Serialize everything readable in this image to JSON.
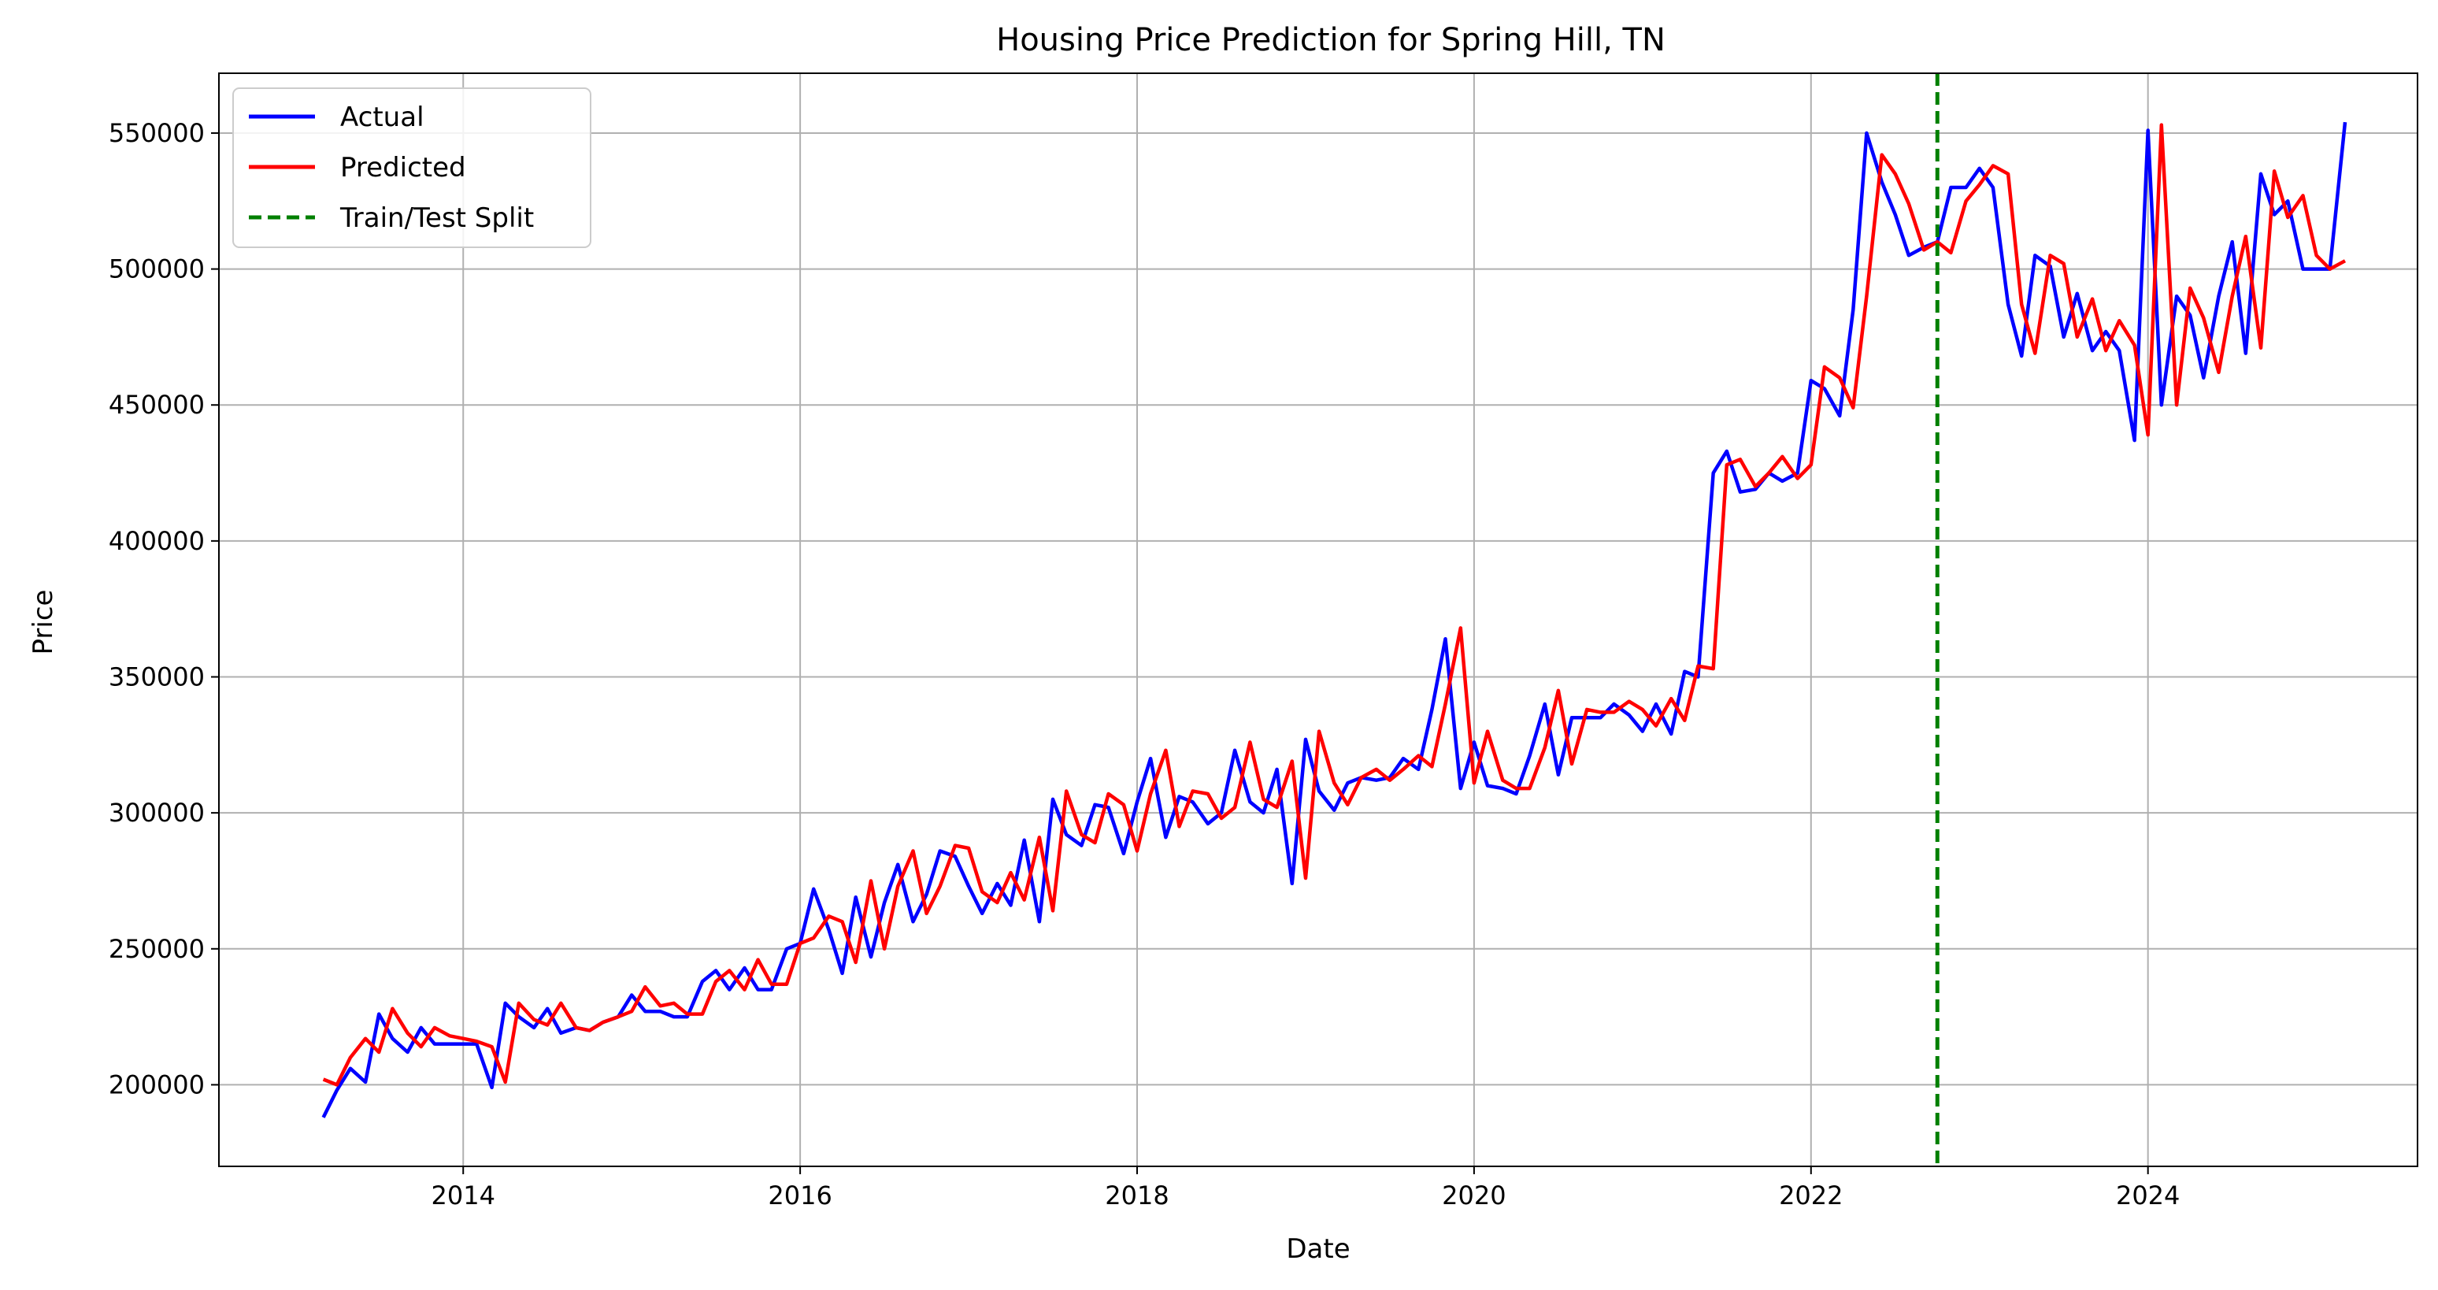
{
  "chart_data": {
    "type": "line",
    "title": "Housing Price Prediction for Spring Hill, TN",
    "xlabel": "Date",
    "ylabel": "Price",
    "x_ticks": [
      "2014",
      "2016",
      "2018",
      "2020",
      "2022",
      "2024"
    ],
    "y_ticks": [
      "200000",
      "250000",
      "300000",
      "350000",
      "400000",
      "450000",
      "500000",
      "550000"
    ],
    "xlim": [
      2012.55,
      2025.6
    ],
    "ylim": [
      170000,
      572000
    ],
    "grid": true,
    "legend_position": "top-left",
    "split": {
      "name": "Train/Test Split",
      "x": 2022.75,
      "color": "#008000"
    },
    "series": [
      {
        "name": "Actual",
        "color": "#0000ff",
        "values": [
          [
            2013.17,
            188000
          ],
          [
            2013.25,
            198000
          ],
          [
            2013.33,
            206000
          ],
          [
            2013.42,
            201000
          ],
          [
            2013.5,
            226000
          ],
          [
            2013.58,
            217000
          ],
          [
            2013.67,
            212000
          ],
          [
            2013.75,
            221000
          ],
          [
            2013.83,
            215000
          ],
          [
            2013.92,
            215000
          ],
          [
            2014.0,
            215000
          ],
          [
            2014.08,
            215000
          ],
          [
            2014.17,
            199000
          ],
          [
            2014.25,
            230000
          ],
          [
            2014.33,
            225000
          ],
          [
            2014.42,
            221000
          ],
          [
            2014.5,
            228000
          ],
          [
            2014.58,
            219000
          ],
          [
            2014.67,
            221000
          ],
          [
            2014.75,
            220000
          ],
          [
            2014.83,
            223000
          ],
          [
            2014.92,
            225000
          ],
          [
            2015.0,
            233000
          ],
          [
            2015.08,
            227000
          ],
          [
            2015.17,
            227000
          ],
          [
            2015.25,
            225000
          ],
          [
            2015.33,
            225000
          ],
          [
            2015.42,
            238000
          ],
          [
            2015.5,
            242000
          ],
          [
            2015.58,
            235000
          ],
          [
            2015.67,
            243000
          ],
          [
            2015.75,
            235000
          ],
          [
            2015.83,
            235000
          ],
          [
            2015.92,
            250000
          ],
          [
            2016.0,
            252000
          ],
          [
            2016.08,
            272000
          ],
          [
            2016.17,
            257000
          ],
          [
            2016.25,
            241000
          ],
          [
            2016.33,
            269000
          ],
          [
            2016.42,
            247000
          ],
          [
            2016.5,
            267000
          ],
          [
            2016.58,
            281000
          ],
          [
            2016.67,
            260000
          ],
          [
            2016.75,
            270000
          ],
          [
            2016.83,
            286000
          ],
          [
            2016.92,
            284000
          ],
          [
            2017.0,
            273000
          ],
          [
            2017.08,
            263000
          ],
          [
            2017.17,
            274000
          ],
          [
            2017.25,
            266000
          ],
          [
            2017.33,
            290000
          ],
          [
            2017.42,
            260000
          ],
          [
            2017.5,
            305000
          ],
          [
            2017.58,
            292000
          ],
          [
            2017.67,
            288000
          ],
          [
            2017.75,
            303000
          ],
          [
            2017.83,
            302000
          ],
          [
            2017.92,
            285000
          ],
          [
            2018.0,
            304000
          ],
          [
            2018.08,
            320000
          ],
          [
            2018.17,
            291000
          ],
          [
            2018.25,
            306000
          ],
          [
            2018.33,
            304000
          ],
          [
            2018.42,
            296000
          ],
          [
            2018.5,
            300000
          ],
          [
            2018.58,
            323000
          ],
          [
            2018.67,
            304000
          ],
          [
            2018.75,
            300000
          ],
          [
            2018.83,
            316000
          ],
          [
            2018.92,
            274000
          ],
          [
            2019.0,
            327000
          ],
          [
            2019.08,
            308000
          ],
          [
            2019.17,
            301000
          ],
          [
            2019.25,
            311000
          ],
          [
            2019.33,
            313000
          ],
          [
            2019.42,
            312000
          ],
          [
            2019.5,
            313000
          ],
          [
            2019.58,
            320000
          ],
          [
            2019.67,
            316000
          ],
          [
            2019.75,
            338000
          ],
          [
            2019.83,
            364000
          ],
          [
            2019.92,
            309000
          ],
          [
            2020.0,
            326000
          ],
          [
            2020.08,
            310000
          ],
          [
            2020.17,
            309000
          ],
          [
            2020.25,
            307000
          ],
          [
            2020.33,
            321000
          ],
          [
            2020.42,
            340000
          ],
          [
            2020.5,
            314000
          ],
          [
            2020.58,
            335000
          ],
          [
            2020.67,
            335000
          ],
          [
            2020.75,
            335000
          ],
          [
            2020.83,
            340000
          ],
          [
            2020.92,
            336000
          ],
          [
            2021.0,
            330000
          ],
          [
            2021.08,
            340000
          ],
          [
            2021.17,
            329000
          ],
          [
            2021.25,
            352000
          ],
          [
            2021.33,
            350000
          ],
          [
            2021.42,
            425000
          ],
          [
            2021.5,
            433000
          ],
          [
            2021.58,
            418000
          ],
          [
            2021.67,
            419000
          ],
          [
            2021.75,
            425000
          ],
          [
            2021.83,
            422000
          ],
          [
            2021.92,
            425000
          ],
          [
            2022.0,
            459000
          ],
          [
            2022.08,
            456000
          ],
          [
            2022.17,
            446000
          ],
          [
            2022.25,
            485000
          ],
          [
            2022.33,
            550000
          ],
          [
            2022.42,
            532000
          ],
          [
            2022.5,
            520000
          ],
          [
            2022.58,
            505000
          ],
          [
            2022.67,
            508000
          ],
          [
            2022.75,
            510000
          ],
          [
            2022.83,
            530000
          ],
          [
            2022.92,
            530000
          ],
          [
            2023.0,
            537000
          ],
          [
            2023.08,
            530000
          ],
          [
            2023.17,
            487000
          ],
          [
            2023.25,
            468000
          ],
          [
            2023.33,
            505000
          ],
          [
            2023.42,
            501000
          ],
          [
            2023.5,
            475000
          ],
          [
            2023.58,
            491000
          ],
          [
            2023.67,
            470000
          ],
          [
            2023.75,
            477000
          ],
          [
            2023.83,
            470000
          ],
          [
            2023.92,
            437000
          ],
          [
            2024.0,
            551000
          ],
          [
            2024.08,
            450000
          ],
          [
            2024.17,
            490000
          ],
          [
            2024.25,
            483000
          ],
          [
            2024.33,
            460000
          ],
          [
            2024.42,
            490000
          ],
          [
            2024.5,
            510000
          ],
          [
            2024.58,
            469000
          ],
          [
            2024.67,
            535000
          ],
          [
            2024.75,
            520000
          ],
          [
            2024.83,
            525000
          ],
          [
            2024.92,
            500000
          ],
          [
            2025.0,
            500000
          ],
          [
            2025.08,
            500000
          ],
          [
            2025.17,
            554000
          ]
        ]
      },
      {
        "name": "Predicted",
        "color": "#ff0000",
        "values": [
          [
            2013.17,
            202000
          ],
          [
            2013.25,
            200000
          ],
          [
            2013.33,
            210000
          ],
          [
            2013.42,
            217000
          ],
          [
            2013.5,
            212000
          ],
          [
            2013.58,
            228000
          ],
          [
            2013.67,
            219000
          ],
          [
            2013.75,
            214000
          ],
          [
            2013.83,
            221000
          ],
          [
            2013.92,
            218000
          ],
          [
            2014.0,
            217000
          ],
          [
            2014.08,
            216000
          ],
          [
            2014.17,
            214000
          ],
          [
            2014.25,
            201000
          ],
          [
            2014.33,
            230000
          ],
          [
            2014.42,
            224000
          ],
          [
            2014.5,
            222000
          ],
          [
            2014.58,
            230000
          ],
          [
            2014.67,
            221000
          ],
          [
            2014.75,
            220000
          ],
          [
            2014.83,
            223000
          ],
          [
            2014.92,
            225000
          ],
          [
            2015.0,
            227000
          ],
          [
            2015.08,
            236000
          ],
          [
            2015.17,
            229000
          ],
          [
            2015.25,
            230000
          ],
          [
            2015.33,
            226000
          ],
          [
            2015.42,
            226000
          ],
          [
            2015.5,
            238000
          ],
          [
            2015.58,
            242000
          ],
          [
            2015.67,
            235000
          ],
          [
            2015.75,
            246000
          ],
          [
            2015.83,
            237000
          ],
          [
            2015.92,
            237000
          ],
          [
            2016.0,
            252000
          ],
          [
            2016.08,
            254000
          ],
          [
            2016.17,
            262000
          ],
          [
            2016.25,
            260000
          ],
          [
            2016.33,
            245000
          ],
          [
            2016.42,
            275000
          ],
          [
            2016.5,
            250000
          ],
          [
            2016.58,
            273000
          ],
          [
            2016.67,
            286000
          ],
          [
            2016.75,
            263000
          ],
          [
            2016.83,
            273000
          ],
          [
            2016.92,
            288000
          ],
          [
            2017.0,
            287000
          ],
          [
            2017.08,
            271000
          ],
          [
            2017.17,
            267000
          ],
          [
            2017.25,
            278000
          ],
          [
            2017.33,
            268000
          ],
          [
            2017.42,
            291000
          ],
          [
            2017.5,
            264000
          ],
          [
            2017.58,
            308000
          ],
          [
            2017.67,
            292000
          ],
          [
            2017.75,
            289000
          ],
          [
            2017.83,
            307000
          ],
          [
            2017.92,
            303000
          ],
          [
            2018.0,
            286000
          ],
          [
            2018.08,
            307000
          ],
          [
            2018.17,
            323000
          ],
          [
            2018.25,
            295000
          ],
          [
            2018.33,
            308000
          ],
          [
            2018.42,
            307000
          ],
          [
            2018.5,
            298000
          ],
          [
            2018.58,
            302000
          ],
          [
            2018.67,
            326000
          ],
          [
            2018.75,
            305000
          ],
          [
            2018.83,
            302000
          ],
          [
            2018.92,
            319000
          ],
          [
            2019.0,
            276000
          ],
          [
            2019.08,
            330000
          ],
          [
            2019.17,
            311000
          ],
          [
            2019.25,
            303000
          ],
          [
            2019.33,
            313000
          ],
          [
            2019.42,
            316000
          ],
          [
            2019.5,
            312000
          ],
          [
            2019.58,
            316000
          ],
          [
            2019.67,
            321000
          ],
          [
            2019.75,
            317000
          ],
          [
            2019.83,
            340000
          ],
          [
            2019.92,
            368000
          ],
          [
            2020.0,
            311000
          ],
          [
            2020.08,
            330000
          ],
          [
            2020.17,
            312000
          ],
          [
            2020.25,
            309000
          ],
          [
            2020.33,
            309000
          ],
          [
            2020.42,
            324000
          ],
          [
            2020.5,
            345000
          ],
          [
            2020.58,
            318000
          ],
          [
            2020.67,
            338000
          ],
          [
            2020.75,
            337000
          ],
          [
            2020.83,
            337000
          ],
          [
            2020.92,
            341000
          ],
          [
            2021.0,
            338000
          ],
          [
            2021.08,
            332000
          ],
          [
            2021.17,
            342000
          ],
          [
            2021.25,
            334000
          ],
          [
            2021.33,
            354000
          ],
          [
            2021.42,
            353000
          ],
          [
            2021.5,
            428000
          ],
          [
            2021.58,
            430000
          ],
          [
            2021.67,
            420000
          ],
          [
            2021.75,
            425000
          ],
          [
            2021.83,
            431000
          ],
          [
            2021.92,
            423000
          ],
          [
            2022.0,
            428000
          ],
          [
            2022.08,
            464000
          ],
          [
            2022.17,
            460000
          ],
          [
            2022.25,
            449000
          ],
          [
            2022.33,
            490000
          ],
          [
            2022.42,
            542000
          ],
          [
            2022.5,
            535000
          ],
          [
            2022.58,
            524000
          ],
          [
            2022.67,
            507000
          ],
          [
            2022.75,
            510000
          ],
          [
            2022.83,
            506000
          ],
          [
            2022.92,
            525000
          ],
          [
            2023.0,
            531000
          ],
          [
            2023.08,
            538000
          ],
          [
            2023.17,
            535000
          ],
          [
            2023.25,
            487000
          ],
          [
            2023.33,
            469000
          ],
          [
            2023.42,
            505000
          ],
          [
            2023.5,
            502000
          ],
          [
            2023.58,
            475000
          ],
          [
            2023.67,
            489000
          ],
          [
            2023.75,
            470000
          ],
          [
            2023.83,
            481000
          ],
          [
            2023.92,
            472000
          ],
          [
            2024.0,
            439000
          ],
          [
            2024.08,
            553000
          ],
          [
            2024.17,
            450000
          ],
          [
            2024.25,
            493000
          ],
          [
            2024.33,
            482000
          ],
          [
            2024.42,
            462000
          ],
          [
            2024.5,
            490000
          ],
          [
            2024.58,
            512000
          ],
          [
            2024.67,
            471000
          ],
          [
            2024.75,
            536000
          ],
          [
            2024.83,
            519000
          ],
          [
            2024.92,
            527000
          ],
          [
            2025.0,
            505000
          ],
          [
            2025.08,
            500000
          ],
          [
            2025.17,
            503000
          ]
        ]
      }
    ]
  }
}
